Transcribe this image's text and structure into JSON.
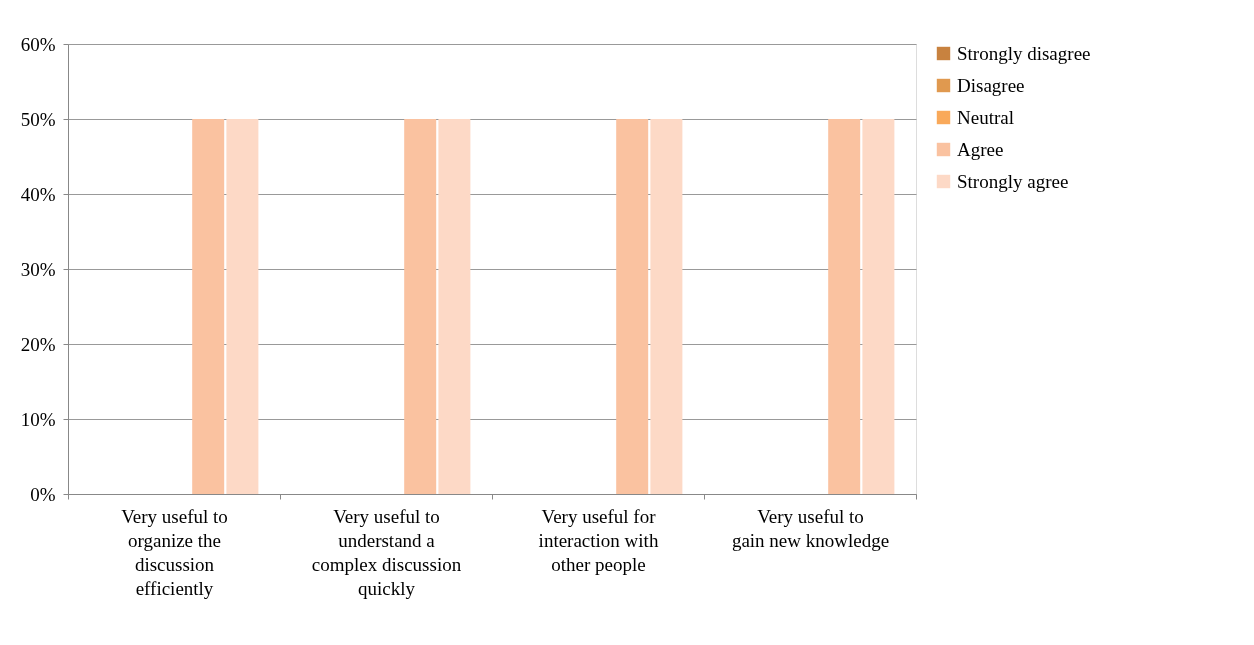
{
  "chart_data": {
    "type": "bar",
    "categories": [
      "Very useful to organize the discussion efficiently",
      "Very useful to understand a complex discussion quickly",
      "Very useful for interaction with other people",
      "Very useful to gain new knowledge"
    ],
    "series": [
      {
        "name": "Strongly disagree",
        "color": "#c8823f",
        "values": [
          0,
          0,
          0,
          0
        ]
      },
      {
        "name": "Disagree",
        "color": "#e0994f",
        "values": [
          0,
          0,
          0,
          0
        ]
      },
      {
        "name": "Neutral",
        "color": "#f9a95a",
        "values": [
          0,
          0,
          0,
          0
        ]
      },
      {
        "name": "Agree",
        "color": "#fac2a0",
        "values": [
          50,
          50,
          50,
          50
        ]
      },
      {
        "name": "Strongly agree",
        "color": "#fdd9c6",
        "values": [
          50,
          50,
          50,
          50
        ]
      }
    ],
    "ylim": [
      0,
      60
    ],
    "yticks": [
      {
        "value": 0,
        "label": "0%"
      },
      {
        "value": 10,
        "label": "10%"
      },
      {
        "value": 20,
        "label": "20%"
      },
      {
        "value": 30,
        "label": "30%"
      },
      {
        "value": 40,
        "label": "40%"
      },
      {
        "value": 50,
        "label": "50%"
      },
      {
        "value": 60,
        "label": "60%"
      }
    ],
    "grid": "y",
    "legend": "right"
  }
}
